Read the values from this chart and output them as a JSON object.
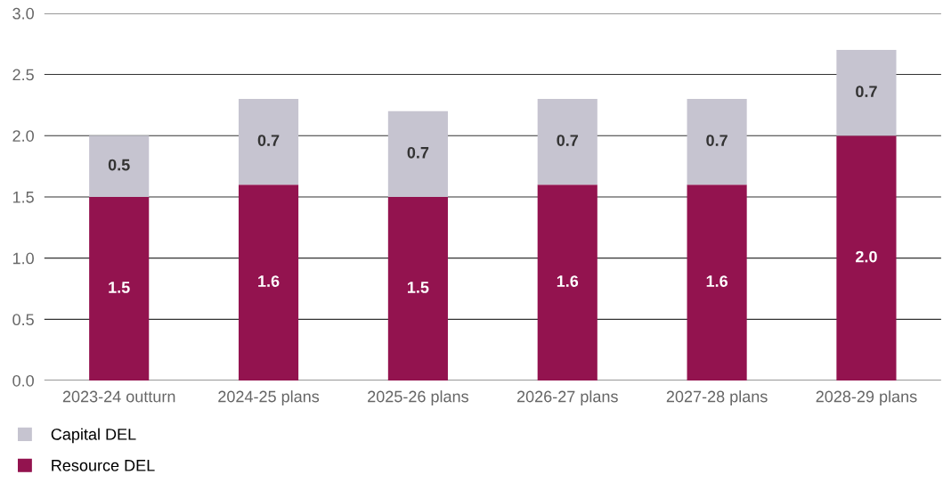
{
  "chart_data": {
    "type": "bar",
    "stacked": true,
    "categories": [
      "2023-24 outturn",
      "2024-25 plans",
      "2025-26 plans",
      "2026-27 plans",
      "2027-28 plans",
      "2028-29 plans"
    ],
    "series": [
      {
        "name": "Resource DEL",
        "color": "#93134f",
        "values": [
          1.5,
          1.6,
          1.5,
          1.6,
          1.6,
          2.0
        ],
        "value_labels": [
          "1.5",
          "1.6",
          "1.5",
          "1.6",
          "1.6",
          "2.0"
        ]
      },
      {
        "name": "Capital DEL",
        "color": "#c6c4d0",
        "values": [
          0.5,
          0.7,
          0.7,
          0.7,
          0.7,
          0.7
        ],
        "value_labels": [
          "0.5",
          "0.7",
          "0.7",
          "0.7",
          "0.7",
          "0.7"
        ]
      }
    ],
    "ylim": [
      0,
      3.0
    ],
    "yticks": [
      {
        "value": 0,
        "label": "0.0"
      },
      {
        "value": 0.5,
        "label": "0.5"
      },
      {
        "value": 1.0,
        "label": "1.0"
      },
      {
        "value": 1.5,
        "label": "1.5"
      },
      {
        "value": 2.0,
        "label": "2.0"
      },
      {
        "value": 2.5,
        "label": "2.5"
      },
      {
        "value": 3.0,
        "label": "3.0"
      }
    ],
    "grid": "y",
    "legend": "bottom left"
  }
}
